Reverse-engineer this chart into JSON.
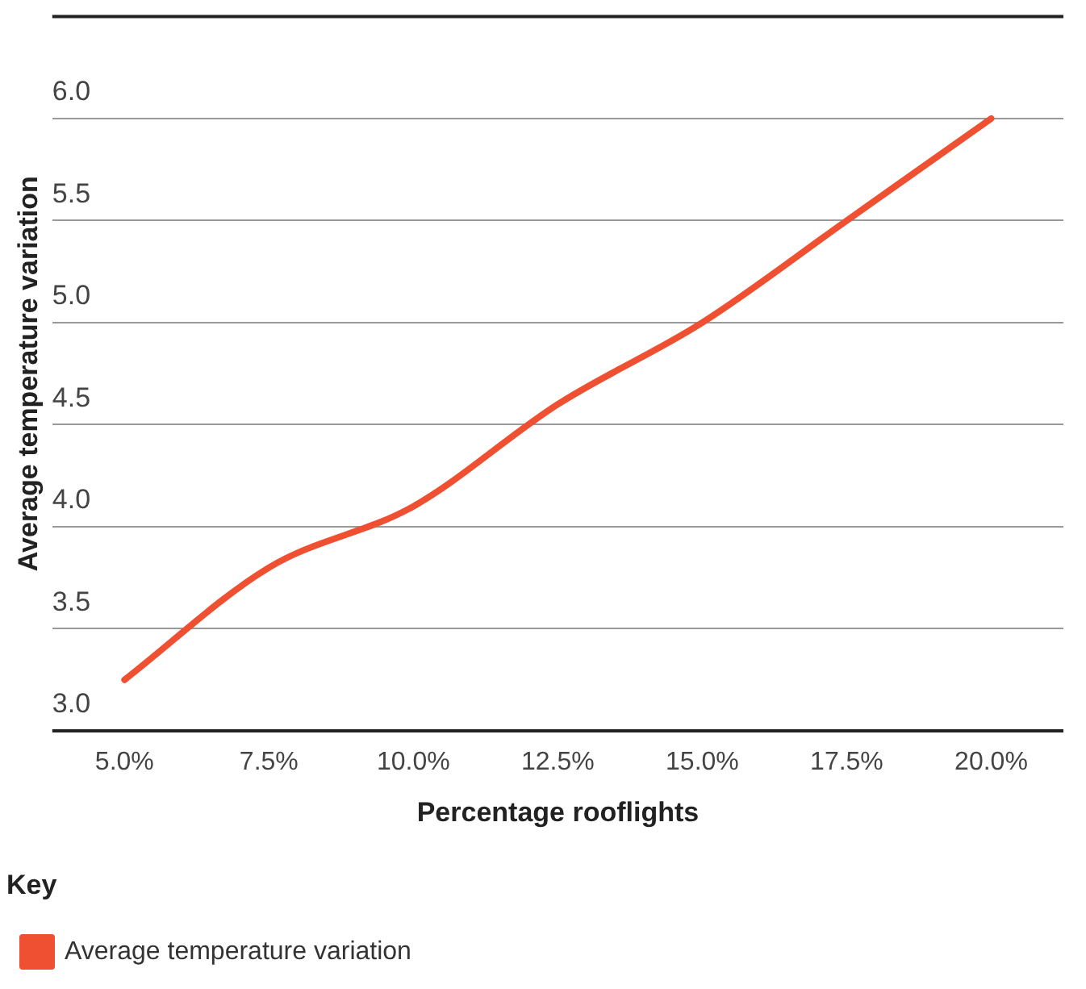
{
  "chart_data": {
    "type": "line",
    "xlabel": "Percentage rooflights",
    "ylabel": "Average temperature variation",
    "legend_title": "Key",
    "categories": [
      "5.0%",
      "7.5%",
      "10.0%",
      "12.5%",
      "15.0%",
      "17.5%",
      "20.0%"
    ],
    "series": [
      {
        "name": "Average temperature variation",
        "color": "#f05032",
        "values": [
          3.25,
          3.8,
          4.1,
          4.6,
          5.0,
          5.5,
          6.0
        ]
      }
    ],
    "ylim": [
      3,
      6.5
    ],
    "yticks": [
      {
        "value": 3,
        "label": "3.0"
      },
      3.5,
      {
        "value": 4,
        "label": "4.0"
      },
      4.5,
      {
        "value": 5,
        "label": "5.0"
      },
      5.5,
      {
        "value": 6,
        "label": "6.0"
      }
    ],
    "grid": "y",
    "legend": "bottom",
    "marker": "none",
    "line_style": "solid"
  }
}
